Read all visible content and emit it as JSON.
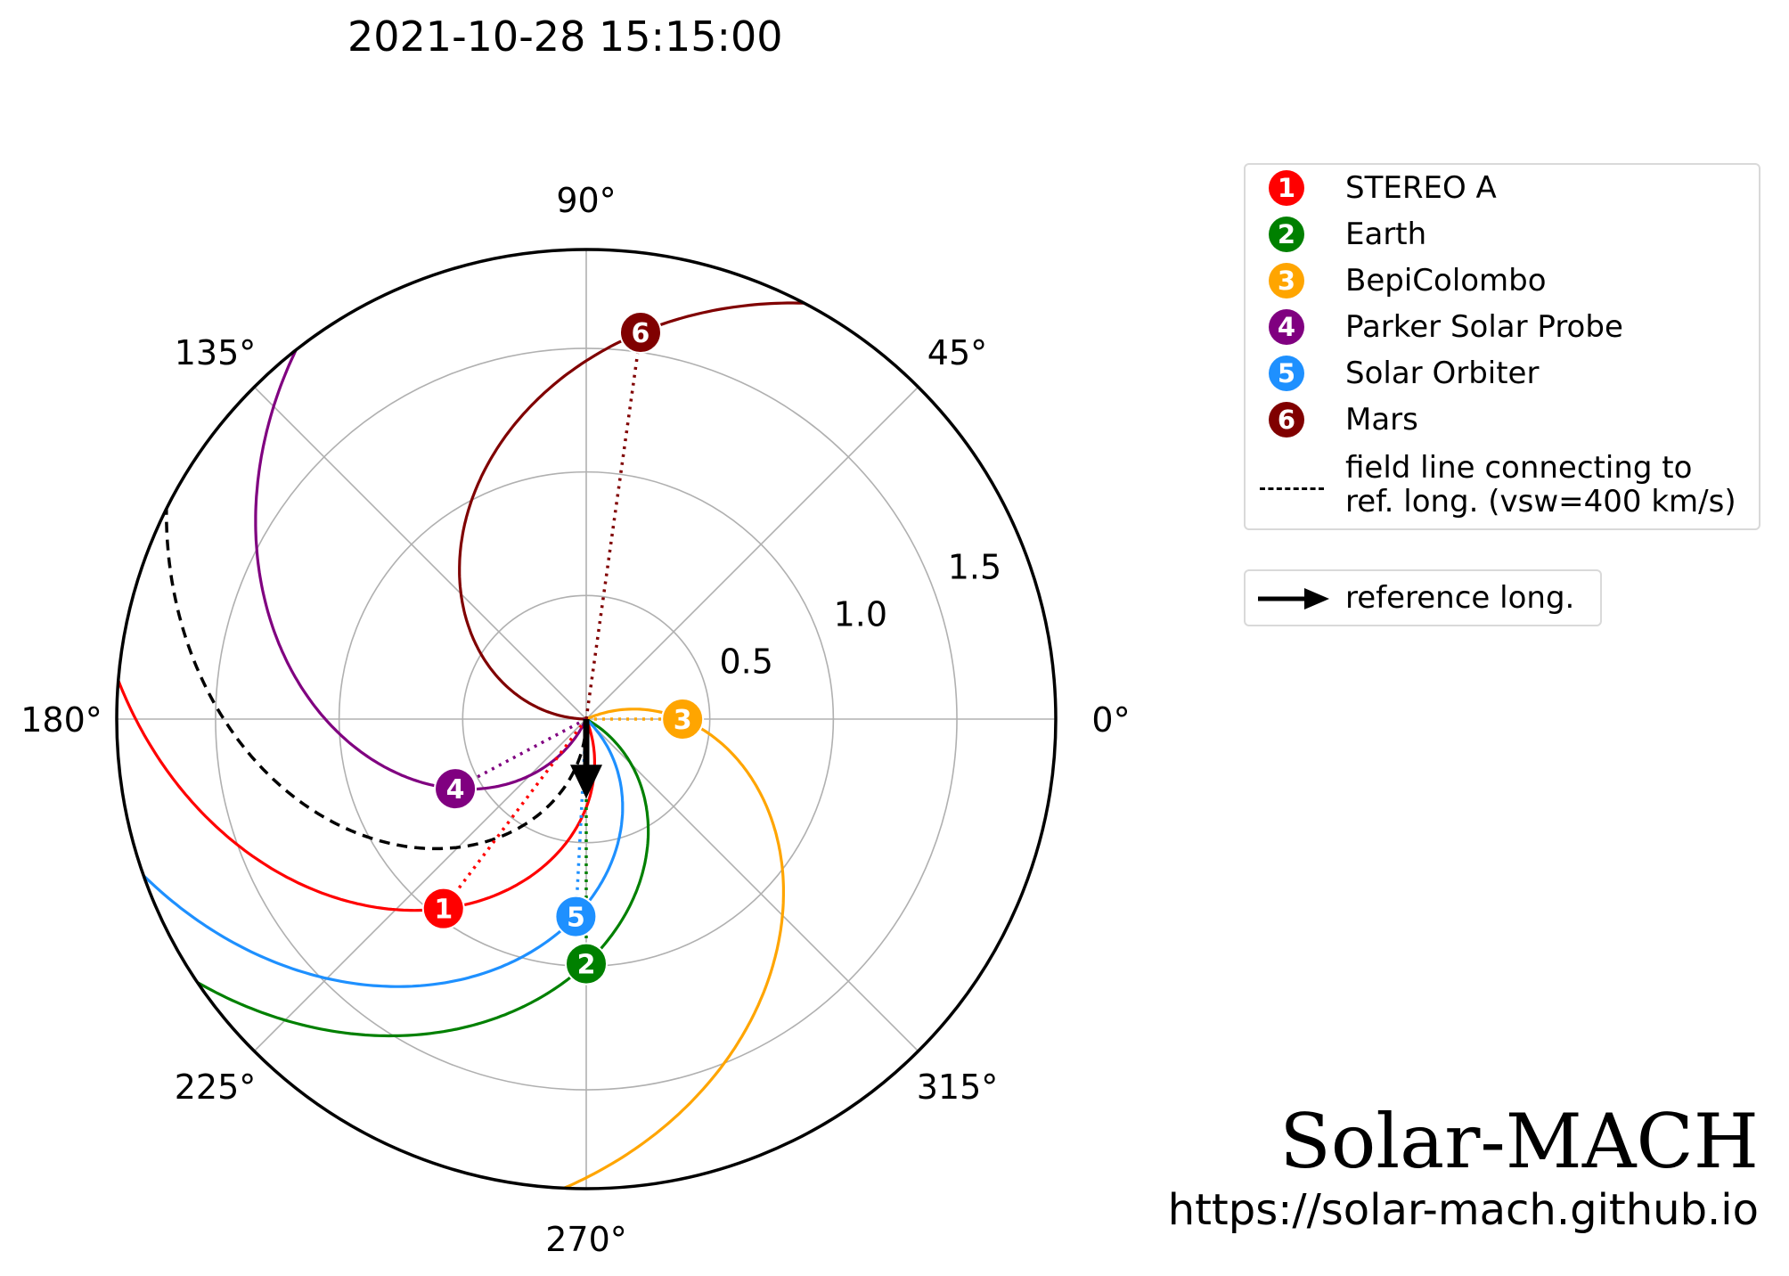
{
  "title": "2021-10-28 15:15:00",
  "chart_data": {
    "type": "polar",
    "theta_unit": "deg",
    "r_unit": "AU",
    "r_ticks": [
      "0.5",
      "1.0",
      "1.5"
    ],
    "r_tick_values": [
      0.5,
      1.0,
      1.5
    ],
    "r_max": 1.9,
    "theta_ticks": [
      "0°",
      "45°",
      "90°",
      "135°",
      "180°",
      "225°",
      "270°",
      "315°"
    ],
    "theta_tick_values": [
      0,
      45,
      90,
      135,
      180,
      225,
      270,
      315
    ],
    "grid": true,
    "vsw_km_s": 400,
    "reference_longitude": 270,
    "bodies": [
      {
        "id": "1",
        "name": "STEREO A",
        "r": 0.96,
        "lon": 233,
        "color": "#ff0000"
      },
      {
        "id": "2",
        "name": "Earth",
        "r": 0.99,
        "lon": 270,
        "color": "#008000"
      },
      {
        "id": "3",
        "name": "BepiColombo",
        "r": 0.39,
        "lon": 0,
        "color": "#ffa500"
      },
      {
        "id": "4",
        "name": "Parker Solar Probe",
        "r": 0.6,
        "lon": 208,
        "color": "#800080"
      },
      {
        "id": "5",
        "name": "Solar Orbiter",
        "r": 0.8,
        "lon": 267,
        "color": "#1e90ff"
      },
      {
        "id": "6",
        "name": "Mars",
        "r": 1.58,
        "lon": 82,
        "color": "#800000"
      }
    ],
    "reference_field_line": {
      "label_line1": "field line connecting to",
      "label_line2": "ref. long. (vsw=400 km/s)"
    },
    "reference_arrow": {
      "label": "reference long.",
      "lon": 270,
      "length": 0.3
    }
  },
  "branding": {
    "name": "Solar-MACH",
    "url": "https://solar-mach.github.io"
  }
}
